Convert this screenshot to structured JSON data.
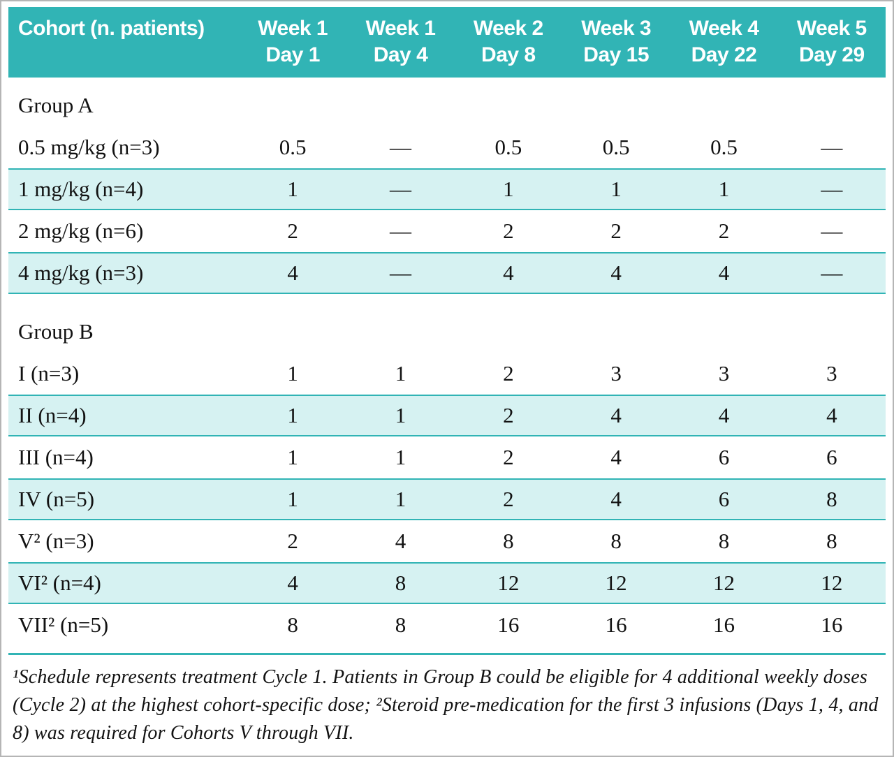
{
  "figure": {
    "footnote": "¹Schedule represents treatment Cycle 1. Patients in Group B could be eligible for 4 additional weekly doses (Cycle 2) at the highest cohort-specific dose; ²Steroid pre-medication for the first 3 infusions (Days 1, 4, and 8) was required for Cohorts V through VII."
  },
  "colors": {
    "header_background": "#31b4b5",
    "header_text": "#ffffff",
    "shaded_row": "#d6f2f2",
    "rule": "#31b4b5",
    "body_text": "#121212"
  },
  "chart_data": {
    "type": "table",
    "columns": [
      {
        "line1": "Cohort (n. patients)",
        "line2": ""
      },
      {
        "line1": "Week 1",
        "line2": "Day 1"
      },
      {
        "line1": "Week 1",
        "line2": "Day 4"
      },
      {
        "line1": "Week 2",
        "line2": "Day 8"
      },
      {
        "line1": "Week 3",
        "line2": "Day 15"
      },
      {
        "line1": "Week 4",
        "line2": "Day 22"
      },
      {
        "line1": "Week 5",
        "line2": "Day 29"
      }
    ],
    "rows": [
      {
        "type": "section",
        "label": "Group A",
        "shaded": false
      },
      {
        "type": "data",
        "label": "0.5 mg/kg (n=3)",
        "values": [
          "0.5",
          "—",
          "0.5",
          "0.5",
          "0.5",
          "—"
        ],
        "shaded": false
      },
      {
        "type": "data",
        "label": "1 mg/kg (n=4)",
        "values": [
          "1",
          "—",
          "1",
          "1",
          "1",
          "—"
        ],
        "shaded": true
      },
      {
        "type": "data",
        "label": "2 mg/kg (n=6)",
        "values": [
          "2",
          "—",
          "2",
          "2",
          "2",
          "—"
        ],
        "shaded": false
      },
      {
        "type": "data",
        "label": "4 mg/kg (n=3)",
        "values": [
          "4",
          "—",
          "4",
          "4",
          "4",
          "—"
        ],
        "shaded": true
      },
      {
        "type": "section",
        "label": "Group B",
        "shaded": false,
        "gap_before": true
      },
      {
        "type": "data",
        "label": "I (n=3)",
        "values": [
          "1",
          "1",
          "2",
          "3",
          "3",
          "3"
        ],
        "shaded": false
      },
      {
        "type": "data",
        "label": "II (n=4)",
        "values": [
          "1",
          "1",
          "2",
          "4",
          "4",
          "4"
        ],
        "shaded": true
      },
      {
        "type": "data",
        "label": "III (n=4)",
        "values": [
          "1",
          "1",
          "2",
          "4",
          "6",
          "6"
        ],
        "shaded": false
      },
      {
        "type": "data",
        "label": "IV (n=5)",
        "values": [
          "1",
          "1",
          "2",
          "4",
          "6",
          "8"
        ],
        "shaded": true
      },
      {
        "type": "data",
        "label": "V² (n=3)",
        "values": [
          "2",
          "4",
          "8",
          "8",
          "8",
          "8"
        ],
        "shaded": false
      },
      {
        "type": "data",
        "label": "VI² (n=4)",
        "values": [
          "4",
          "8",
          "12",
          "12",
          "12",
          "12"
        ],
        "shaded": true
      },
      {
        "type": "data",
        "label": "VII² (n=5)",
        "values": [
          "8",
          "8",
          "16",
          "16",
          "16",
          "16"
        ],
        "shaded": false
      }
    ]
  }
}
